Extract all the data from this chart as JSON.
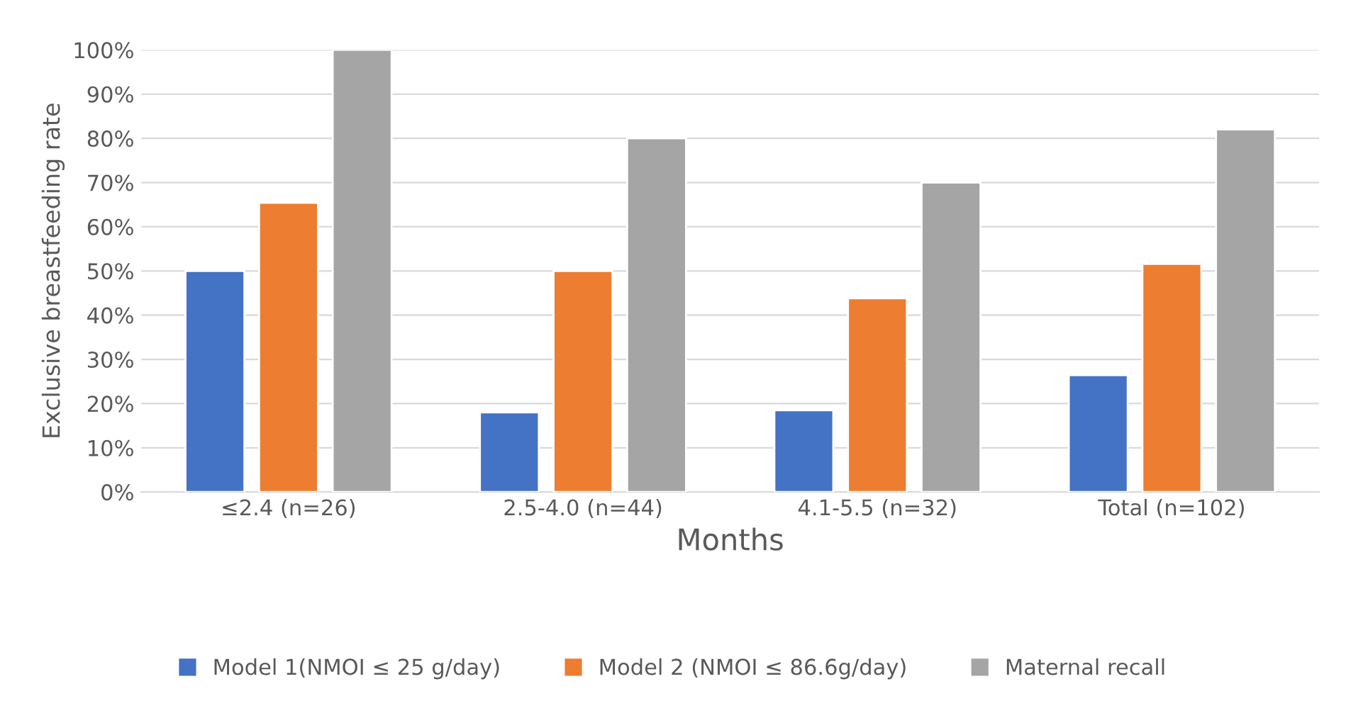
{
  "chart_data": {
    "type": "bar",
    "xlabel": "Months",
    "ylabel": "Exclusive breastfeeding rate",
    "categories": [
      "≤2.4 (n=26)",
      "2.5-4.0 (n=44)",
      "4.1-5.5 (n=32)",
      "Total (n=102)"
    ],
    "series": [
      {
        "name": "Model 1(NMOI ≤ 25 g/day)",
        "color": "#4472c4",
        "values": [
          50,
          18,
          18.5,
          26.4
        ]
      },
      {
        "name": "Model 2 (NMOI ≤ 86.6g/day)",
        "color": "#ed7d31",
        "values": [
          65.4,
          50,
          43.8,
          51.6
        ]
      },
      {
        "name": "Maternal recall",
        "color": "#a5a5a5",
        "values": [
          100,
          80,
          70,
          82
        ]
      }
    ],
    "ylim": [
      0,
      100
    ],
    "yticks": [
      {
        "value": 0,
        "label": "0%"
      },
      {
        "value": 10,
        "label": "10%"
      },
      {
        "value": 20,
        "label": "20%"
      },
      {
        "value": 30,
        "label": "30%"
      },
      {
        "value": 40,
        "label": "40%"
      },
      {
        "value": 50,
        "label": "50%"
      },
      {
        "value": 60,
        "label": "60%"
      },
      {
        "value": 70,
        "label": "70%"
      },
      {
        "value": 80,
        "label": "80%"
      },
      {
        "value": 90,
        "label": "90%"
      },
      {
        "value": 100,
        "label": "100%"
      }
    ],
    "grid": "y",
    "legend": "bottom"
  }
}
